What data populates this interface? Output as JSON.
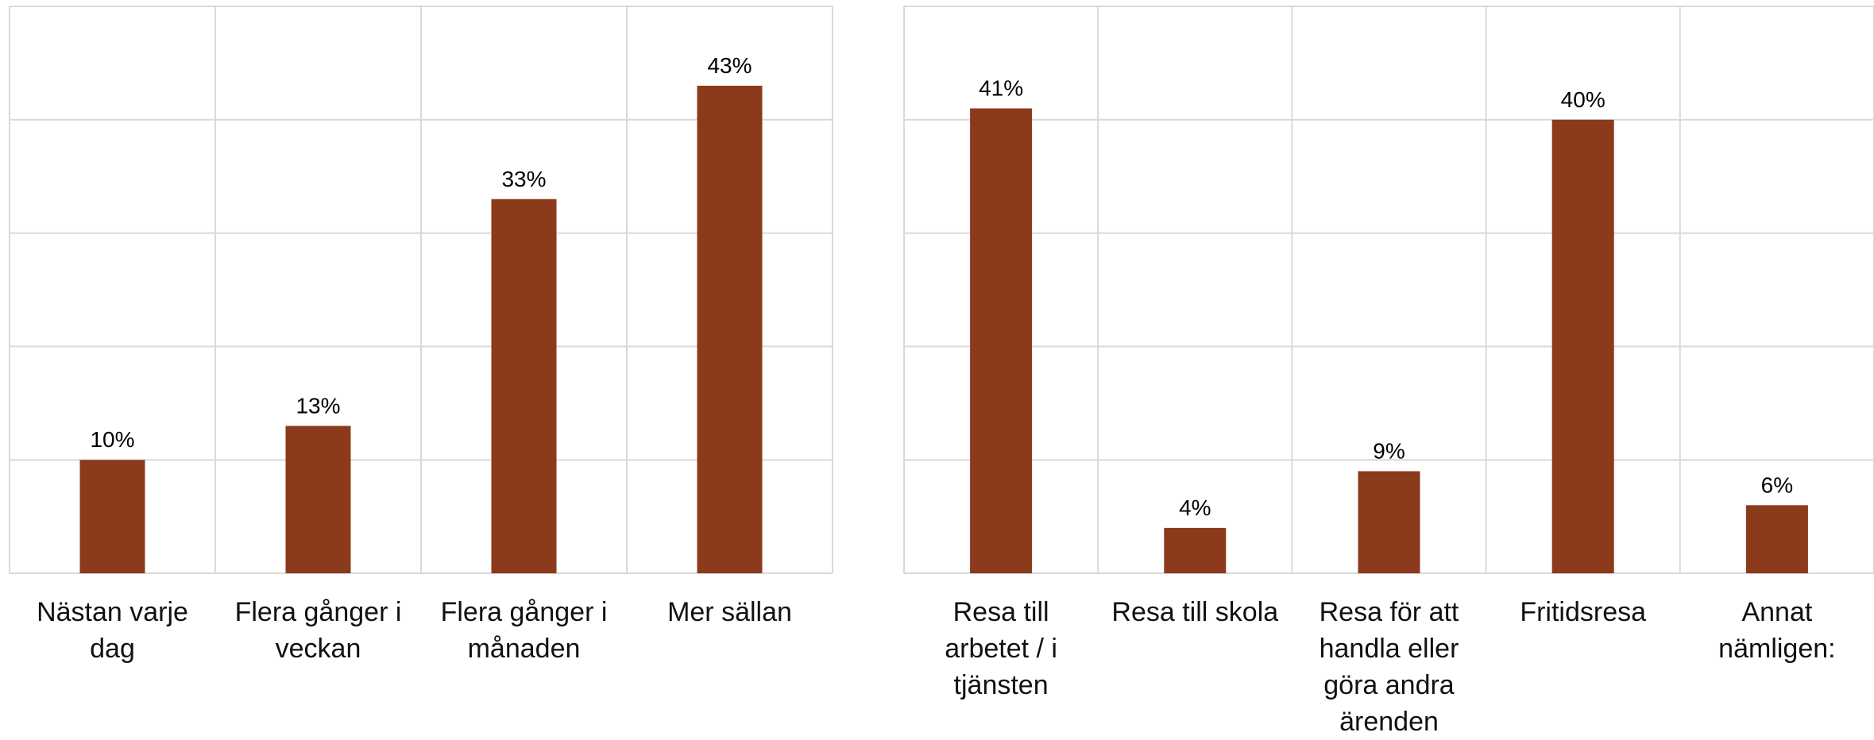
{
  "colors": {
    "bar": "#8b3a1c",
    "grid": "#d9d9d9"
  },
  "chart_data": [
    {
      "type": "bar",
      "categories": [
        "Nästan varje dag",
        "Flera gånger i veckan",
        "Flera gånger i månaden",
        "Mer sällan"
      ],
      "values": [
        10,
        13,
        33,
        43
      ],
      "data_labels": [
        "10%",
        "13%",
        "33%",
        "43%"
      ],
      "ylim": [
        0,
        50
      ],
      "grid": true,
      "legend": "none"
    },
    {
      "type": "bar",
      "categories": [
        "Resa till arbetet / i tjänsten",
        "Resa till skola",
        "Resa för att handla eller göra andra ärenden",
        "Fritidsresa",
        "Annat nämligen:"
      ],
      "values": [
        41,
        4,
        9,
        40,
        6
      ],
      "data_labels": [
        "41%",
        "4%",
        "9%",
        "40%",
        "6%"
      ],
      "ylim": [
        0,
        50
      ],
      "grid": true,
      "legend": "none"
    }
  ]
}
